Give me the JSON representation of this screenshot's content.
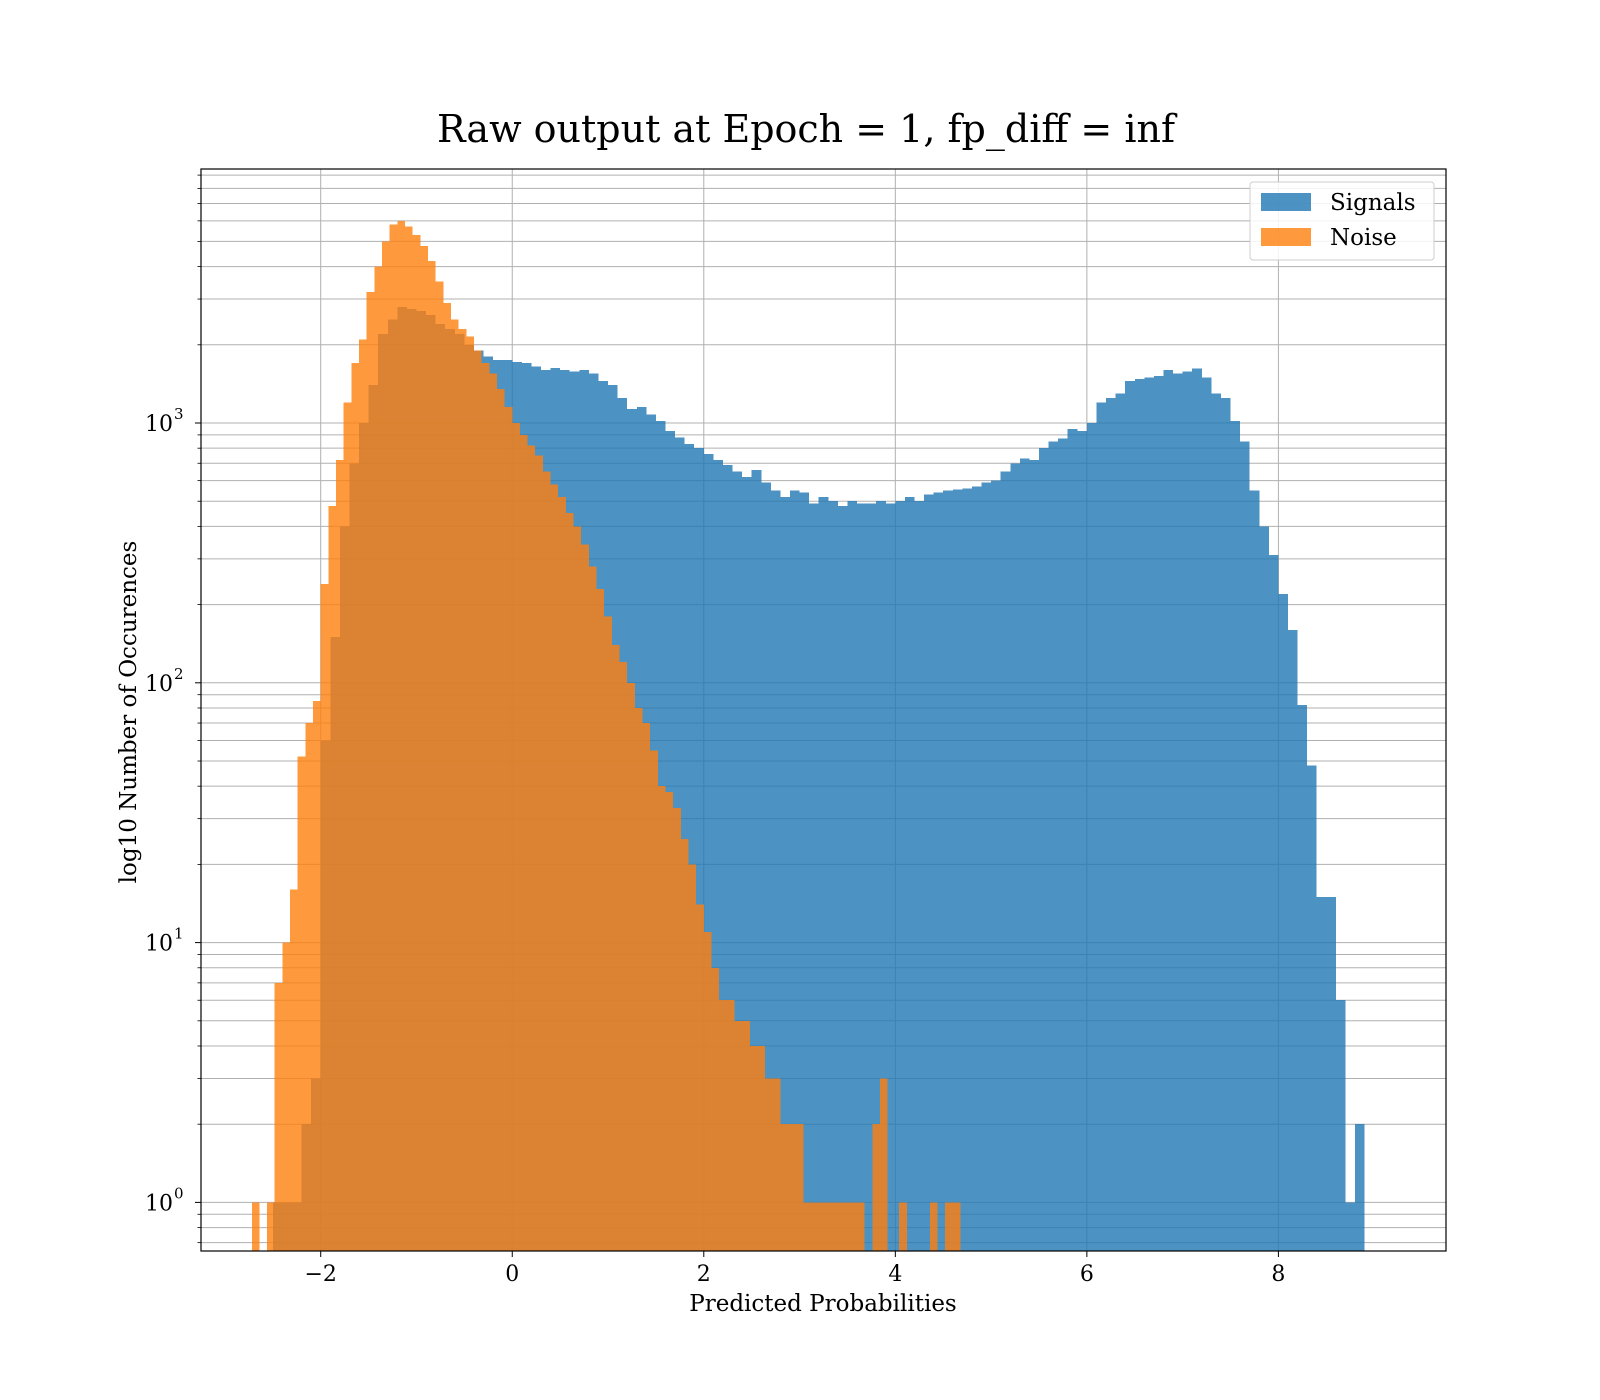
{
  "chart_data": {
    "type": "bar",
    "title": "Raw output at Epoch = 1, fp_diff = inf",
    "xlabel": "Predicted Probabilities",
    "ylabel": "log10 Number of Occurences",
    "xlim": [
      -3.25,
      9.75
    ],
    "ylim": [
      0.65,
      9500
    ],
    "y_scale": "log",
    "grid": true,
    "legend_position": "upper right",
    "x_ticks": [
      -2,
      0,
      2,
      4,
      6,
      8
    ],
    "x_tick_labels": [
      "−2",
      "0",
      "2",
      "4",
      "6",
      "8"
    ],
    "y_ticks": [
      1,
      10,
      100,
      1000
    ],
    "y_tick_labels": [
      {
        "base": "10",
        "exp": "0"
      },
      {
        "base": "10",
        "exp": "1"
      },
      {
        "base": "10",
        "exp": "2"
      },
      {
        "base": "10",
        "exp": "3"
      }
    ],
    "series": [
      {
        "name": "Signals",
        "color": "#1f77b4",
        "opacity": 0.8,
        "bins": [
          [
            -2.5,
            -2.3,
            1
          ],
          [
            -2.3,
            -2.2,
            1
          ],
          [
            -2.2,
            -2.1,
            2
          ],
          [
            -2.1,
            -2.0,
            3
          ],
          [
            -2.0,
            -1.9,
            60
          ],
          [
            -1.9,
            -1.8,
            150
          ],
          [
            -1.8,
            -1.7,
            400
          ],
          [
            -1.7,
            -1.6,
            700
          ],
          [
            -1.6,
            -1.5,
            1000
          ],
          [
            -1.5,
            -1.4,
            1400
          ],
          [
            -1.4,
            -1.3,
            2200
          ],
          [
            -1.3,
            -1.2,
            2500
          ],
          [
            -1.2,
            -1.1,
            2800
          ],
          [
            -1.1,
            -1.0,
            2750
          ],
          [
            -1.0,
            -0.9,
            2700
          ],
          [
            -0.9,
            -0.8,
            2600
          ],
          [
            -0.8,
            -0.7,
            2400
          ],
          [
            -0.7,
            -0.6,
            2300
          ],
          [
            -0.6,
            -0.5,
            2200
          ],
          [
            -0.5,
            -0.4,
            2000
          ],
          [
            -0.4,
            -0.3,
            1900
          ],
          [
            -0.3,
            -0.2,
            1800
          ],
          [
            -0.2,
            -0.1,
            1750
          ],
          [
            -0.1,
            0.0,
            1750
          ],
          [
            0.0,
            0.1,
            1720
          ],
          [
            0.1,
            0.2,
            1700
          ],
          [
            0.2,
            0.3,
            1650
          ],
          [
            0.3,
            0.4,
            1600
          ],
          [
            0.4,
            0.5,
            1630
          ],
          [
            0.5,
            0.6,
            1600
          ],
          [
            0.6,
            0.7,
            1580
          ],
          [
            0.7,
            0.8,
            1600
          ],
          [
            0.8,
            0.9,
            1550
          ],
          [
            0.9,
            1.0,
            1450
          ],
          [
            1.0,
            1.1,
            1400
          ],
          [
            1.1,
            1.2,
            1250
          ],
          [
            1.2,
            1.3,
            1130
          ],
          [
            1.3,
            1.4,
            1150
          ],
          [
            1.4,
            1.5,
            1080
          ],
          [
            1.5,
            1.6,
            1020
          ],
          [
            1.6,
            1.7,
            930
          ],
          [
            1.7,
            1.8,
            880
          ],
          [
            1.8,
            1.9,
            830
          ],
          [
            1.9,
            2.0,
            800
          ],
          [
            2.0,
            2.1,
            760
          ],
          [
            2.1,
            2.2,
            720
          ],
          [
            2.2,
            2.3,
            690
          ],
          [
            2.3,
            2.4,
            650
          ],
          [
            2.4,
            2.5,
            620
          ],
          [
            2.5,
            2.6,
            660
          ],
          [
            2.6,
            2.7,
            590
          ],
          [
            2.7,
            2.8,
            550
          ],
          [
            2.8,
            2.9,
            520
          ],
          [
            2.9,
            3.0,
            550
          ],
          [
            3.0,
            3.1,
            540
          ],
          [
            3.1,
            3.2,
            490
          ],
          [
            3.2,
            3.3,
            520
          ],
          [
            3.3,
            3.4,
            500
          ],
          [
            3.4,
            3.5,
            480
          ],
          [
            3.5,
            3.6,
            500
          ],
          [
            3.6,
            3.7,
            490
          ],
          [
            3.7,
            3.8,
            490
          ],
          [
            3.8,
            3.9,
            500
          ],
          [
            3.9,
            4.0,
            490
          ],
          [
            4.0,
            4.1,
            500
          ],
          [
            4.1,
            4.2,
            520
          ],
          [
            4.2,
            4.3,
            500
          ],
          [
            4.3,
            4.4,
            530
          ],
          [
            4.4,
            4.5,
            540
          ],
          [
            4.5,
            4.6,
            550
          ],
          [
            4.6,
            4.7,
            555
          ],
          [
            4.7,
            4.8,
            560
          ],
          [
            4.8,
            4.9,
            570
          ],
          [
            4.9,
            5.0,
            590
          ],
          [
            5.0,
            5.1,
            600
          ],
          [
            5.1,
            5.2,
            650
          ],
          [
            5.2,
            5.3,
            700
          ],
          [
            5.3,
            5.4,
            730
          ],
          [
            5.4,
            5.5,
            720
          ],
          [
            5.5,
            5.6,
            800
          ],
          [
            5.6,
            5.7,
            850
          ],
          [
            5.7,
            5.8,
            870
          ],
          [
            5.8,
            5.9,
            950
          ],
          [
            5.9,
            6.0,
            930
          ],
          [
            6.0,
            6.1,
            1000
          ],
          [
            6.1,
            6.2,
            1200
          ],
          [
            6.2,
            6.3,
            1250
          ],
          [
            6.3,
            6.4,
            1300
          ],
          [
            6.4,
            6.5,
            1450
          ],
          [
            6.5,
            6.6,
            1480
          ],
          [
            6.6,
            6.7,
            1500
          ],
          [
            6.7,
            6.8,
            1520
          ],
          [
            6.8,
            6.9,
            1600
          ],
          [
            6.9,
            7.0,
            1550
          ],
          [
            7.0,
            7.1,
            1580
          ],
          [
            7.1,
            7.2,
            1620
          ],
          [
            7.2,
            7.3,
            1500
          ],
          [
            7.3,
            7.4,
            1300
          ],
          [
            7.4,
            7.5,
            1250
          ],
          [
            7.5,
            7.6,
            1020
          ],
          [
            7.6,
            7.7,
            850
          ],
          [
            7.7,
            7.8,
            550
          ],
          [
            7.8,
            7.9,
            400
          ],
          [
            7.9,
            8.0,
            310
          ],
          [
            8.0,
            8.1,
            220
          ],
          [
            8.1,
            8.2,
            160
          ],
          [
            8.2,
            8.3,
            82
          ],
          [
            8.3,
            8.4,
            48
          ],
          [
            8.4,
            8.5,
            15
          ],
          [
            8.5,
            8.6,
            15
          ],
          [
            8.6,
            8.7,
            6
          ],
          [
            8.7,
            8.8,
            1
          ],
          [
            8.8,
            8.9,
            2
          ]
        ]
      },
      {
        "name": "Noise",
        "color": "#ff7f0e",
        "opacity": 0.8,
        "bins": [
          [
            -2.72,
            -2.64,
            1
          ],
          [
            -2.56,
            -2.48,
            1
          ],
          [
            -2.48,
            -2.4,
            7
          ],
          [
            -2.4,
            -2.32,
            10
          ],
          [
            -2.32,
            -2.24,
            16
          ],
          [
            -2.24,
            -2.16,
            52
          ],
          [
            -2.16,
            -2.08,
            70
          ],
          [
            -2.08,
            -2.0,
            85
          ],
          [
            -2.0,
            -1.92,
            240
          ],
          [
            -1.92,
            -1.84,
            480
          ],
          [
            -1.84,
            -1.76,
            720
          ],
          [
            -1.76,
            -1.68,
            1200
          ],
          [
            -1.68,
            -1.6,
            1700
          ],
          [
            -1.6,
            -1.52,
            2100
          ],
          [
            -1.52,
            -1.44,
            3200
          ],
          [
            -1.44,
            -1.36,
            4000
          ],
          [
            -1.36,
            -1.28,
            5000
          ],
          [
            -1.28,
            -1.2,
            5800
          ],
          [
            -1.2,
            -1.12,
            6000
          ],
          [
            -1.12,
            -1.04,
            5700
          ],
          [
            -1.04,
            -0.96,
            5300
          ],
          [
            -0.96,
            -0.88,
            4800
          ],
          [
            -0.88,
            -0.8,
            4200
          ],
          [
            -0.8,
            -0.72,
            3500
          ],
          [
            -0.72,
            -0.64,
            2900
          ],
          [
            -0.64,
            -0.56,
            2500
          ],
          [
            -0.56,
            -0.48,
            2300
          ],
          [
            -0.48,
            -0.4,
            2150
          ],
          [
            -0.4,
            -0.32,
            1900
          ],
          [
            -0.32,
            -0.24,
            1700
          ],
          [
            -0.24,
            -0.16,
            1550
          ],
          [
            -0.16,
            -0.08,
            1350
          ],
          [
            -0.08,
            0.0,
            1150
          ],
          [
            0.0,
            0.08,
            1000
          ],
          [
            0.08,
            0.16,
            900
          ],
          [
            0.16,
            0.24,
            820
          ],
          [
            0.24,
            0.32,
            750
          ],
          [
            0.32,
            0.4,
            650
          ],
          [
            0.4,
            0.48,
            580
          ],
          [
            0.48,
            0.56,
            520
          ],
          [
            0.56,
            0.64,
            450
          ],
          [
            0.64,
            0.72,
            400
          ],
          [
            0.72,
            0.8,
            340
          ],
          [
            0.8,
            0.88,
            280
          ],
          [
            0.88,
            0.96,
            230
          ],
          [
            0.96,
            1.04,
            180
          ],
          [
            1.04,
            1.12,
            140
          ],
          [
            1.12,
            1.2,
            120
          ],
          [
            1.2,
            1.28,
            100
          ],
          [
            1.28,
            1.36,
            80
          ],
          [
            1.36,
            1.44,
            70
          ],
          [
            1.44,
            1.52,
            55
          ],
          [
            1.52,
            1.6,
            40
          ],
          [
            1.6,
            1.68,
            38
          ],
          [
            1.68,
            1.76,
            33
          ],
          [
            1.76,
            1.84,
            25
          ],
          [
            1.84,
            1.92,
            20
          ],
          [
            1.92,
            2.0,
            14
          ],
          [
            2.0,
            2.08,
            11
          ],
          [
            2.08,
            2.16,
            8
          ],
          [
            2.16,
            2.24,
            6
          ],
          [
            2.24,
            2.32,
            6
          ],
          [
            2.32,
            2.4,
            5
          ],
          [
            2.4,
            2.48,
            5
          ],
          [
            2.48,
            2.56,
            4
          ],
          [
            2.56,
            2.64,
            4
          ],
          [
            2.64,
            2.72,
            3
          ],
          [
            2.72,
            2.8,
            3
          ],
          [
            2.8,
            2.88,
            2
          ],
          [
            2.88,
            2.96,
            2
          ],
          [
            2.96,
            3.04,
            2
          ],
          [
            3.04,
            3.12,
            1
          ],
          [
            3.12,
            3.2,
            1
          ],
          [
            3.2,
            3.28,
            1
          ],
          [
            3.28,
            3.36,
            1
          ],
          [
            3.36,
            3.44,
            1
          ],
          [
            3.44,
            3.52,
            1
          ],
          [
            3.52,
            3.6,
            1
          ],
          [
            3.6,
            3.68,
            1
          ],
          [
            3.76,
            3.84,
            2
          ],
          [
            3.84,
            3.92,
            3
          ],
          [
            4.04,
            4.12,
            1
          ],
          [
            4.36,
            4.44,
            1
          ],
          [
            4.52,
            4.6,
            1
          ],
          [
            4.6,
            4.68,
            1
          ]
        ]
      }
    ]
  }
}
